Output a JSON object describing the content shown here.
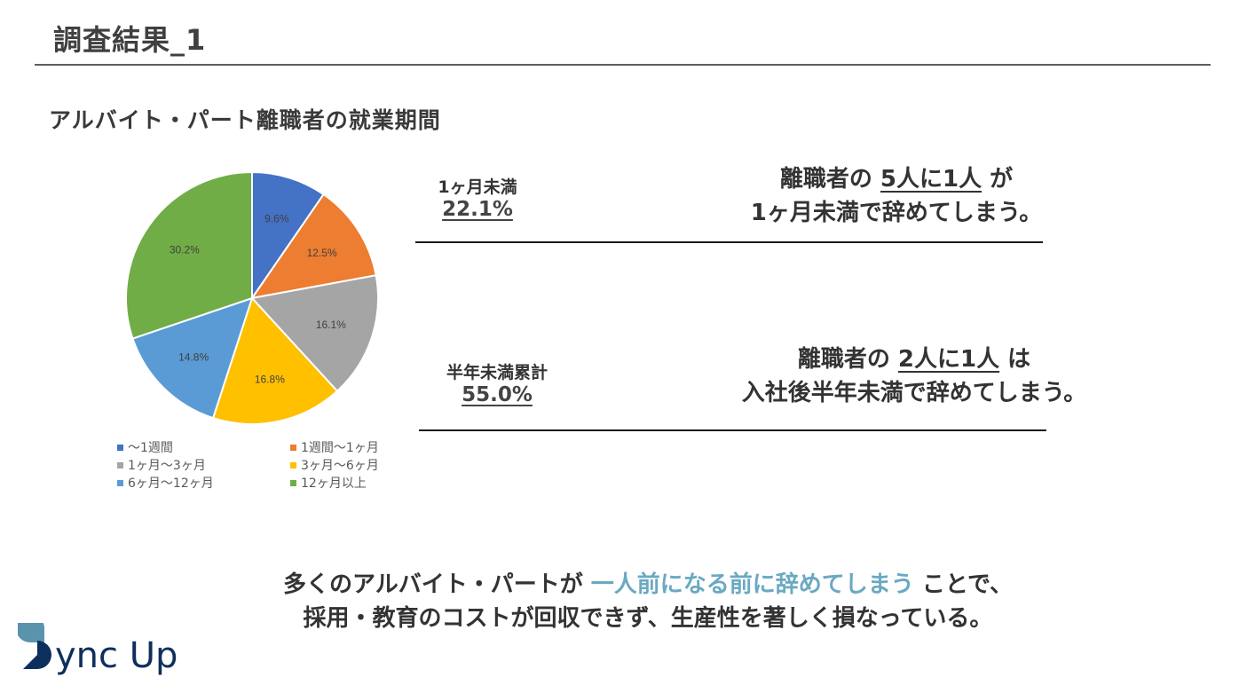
{
  "header": {
    "title": "調査結果_1"
  },
  "section": {
    "subtitle": "アルバイト・パート離職者の就業期間"
  },
  "chart_data": {
    "type": "pie",
    "title": "アルバイト・パート離職者の就業期間",
    "categories": [
      "〜1週間",
      "1週間〜1ヶ月",
      "1ヶ月〜3ヶ月",
      "3ヶ月〜6ヶ月",
      "6ヶ月〜12ヶ月",
      "12ヶ月以上"
    ],
    "values": [
      9.6,
      12.5,
      16.1,
      16.8,
      14.8,
      30.2
    ],
    "labels": [
      "9.6%",
      "12.5%",
      "16.1%",
      "16.8%",
      "14.8%",
      "30.2%"
    ],
    "colors": [
      "#4472c4",
      "#ed7d31",
      "#a5a5a5",
      "#ffc000",
      "#5b9bd5",
      "#70ad47"
    ],
    "unit": "%",
    "legend_position": "bottom",
    "start_angle": "12 o'clock, clockwise"
  },
  "legend": {
    "items": [
      {
        "label": "〜1週間",
        "color": "#4472c4"
      },
      {
        "label": "1週間〜1ヶ月",
        "color": "#ed7d31"
      },
      {
        "label": "1ヶ月〜3ヶ月",
        "color": "#a5a5a5"
      },
      {
        "label": "3ヶ月〜6ヶ月",
        "color": "#ffc000"
      },
      {
        "label": "6ヶ月〜12ヶ月",
        "color": "#5b9bd5"
      },
      {
        "label": "12ヶ月以上",
        "color": "#70ad47"
      }
    ]
  },
  "stats": [
    {
      "label": "1ヶ月未満",
      "value": "22.1%"
    },
    {
      "label": "半年未満累計",
      "value": "55.0%"
    }
  ],
  "messages": [
    {
      "pre": "離職者の ",
      "emph": "5人に1人",
      "post": " が",
      "line2": "1ヶ月未満で辞めてしまう。"
    },
    {
      "pre": "離職者の ",
      "emph": "2人に1人",
      "post": " は",
      "line2": "入社後半年未満で辞めてしまう。"
    }
  ],
  "conclusion": {
    "line1_pre": "多くのアルバイト・パートが ",
    "line1_highlight": "一人前になる前に辞めてしまう",
    "line1_post": " ことで、",
    "line2": "採用・教育のコストが回収できず、生産性を著しく損なっている。",
    "highlight_color": "#6aa9c2"
  },
  "logo": {
    "text": "Sync Up",
    "primary_color": "#0d2f5c",
    "accent_color": "#5b93ad"
  }
}
